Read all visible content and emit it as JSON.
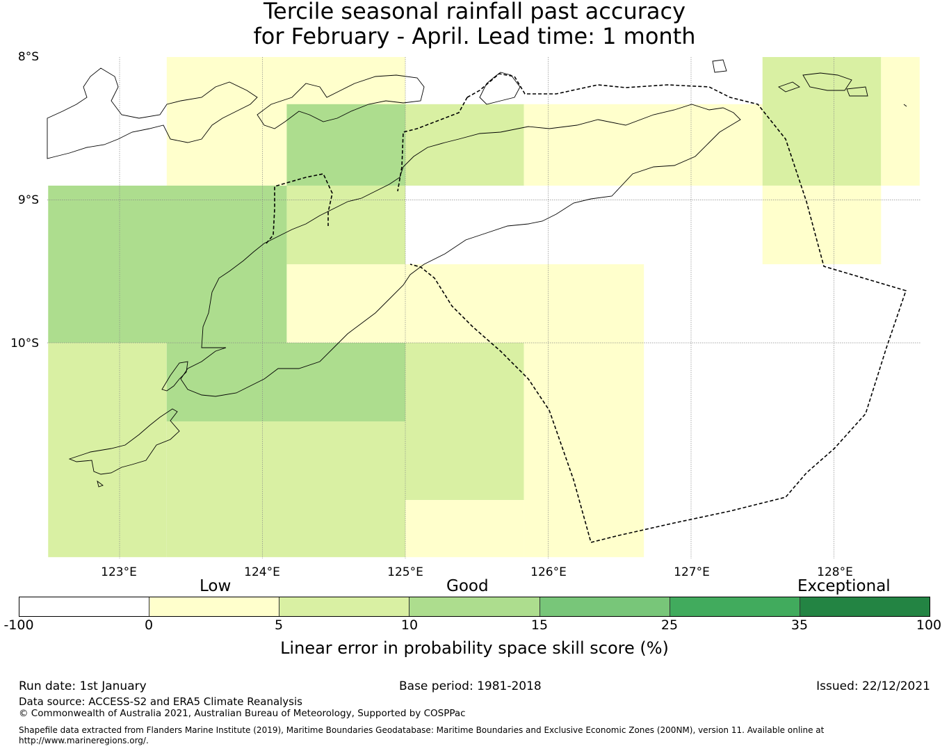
{
  "title": {
    "line1": "Tercile seasonal rainfall past accuracy",
    "line2": "for February - April. Lead time: 1 month"
  },
  "map": {
    "lat_labels": [
      "8°S",
      "9°S",
      "10°S"
    ],
    "lon_labels": [
      "123°E",
      "124°E",
      "125°E",
      "126°E",
      "127°E",
      "128°E"
    ],
    "skill_cells": [
      {
        "lon": [
          123.33,
          125.0
        ],
        "lat": [
          -7.9,
          -8.9
        ],
        "category": "0-5"
      },
      {
        "lon": [
          125.0,
          125.83
        ],
        "lat": [
          -8.33,
          -8.9
        ],
        "category": "5-10"
      },
      {
        "lon": [
          124.17,
          125.0
        ],
        "lat": [
          -8.33,
          -8.9
        ],
        "category": "10-15"
      },
      {
        "lon": [
          125.83,
          127.5
        ],
        "lat": [
          -8.33,
          -8.9
        ],
        "category": "0-5"
      },
      {
        "lon": [
          127.5,
          128.33
        ],
        "lat": [
          -7.9,
          -8.9
        ],
        "category": "5-10"
      },
      {
        "lon": [
          128.33,
          128.6
        ],
        "lat": [
          -7.9,
          -8.9
        ],
        "category": "0-5"
      },
      {
        "lon": [
          122.5,
          124.17
        ],
        "lat": [
          -8.9,
          -10.0
        ],
        "category": "10-15"
      },
      {
        "lon": [
          124.17,
          125.0
        ],
        "lat": [
          -8.9,
          -9.45
        ],
        "category": "5-10"
      },
      {
        "lon": [
          127.5,
          128.33
        ],
        "lat": [
          -8.9,
          -9.45
        ],
        "category": "0-5"
      },
      {
        "lon": [
          124.17,
          126.67
        ],
        "lat": [
          -9.45,
          -10.0
        ],
        "category": "0-5"
      },
      {
        "lon": [
          122.5,
          123.33
        ],
        "lat": [
          -10.0,
          -11.5
        ],
        "category": "5-10"
      },
      {
        "lon": [
          123.33,
          125.0
        ],
        "lat": [
          -10.0,
          -10.55
        ],
        "category": "10-15"
      },
      {
        "lon": [
          125.0,
          125.83
        ],
        "lat": [
          -10.0,
          -11.1
        ],
        "category": "5-10"
      },
      {
        "lon": [
          125.83,
          126.67
        ],
        "lat": [
          -10.0,
          -11.5
        ],
        "category": "0-5"
      },
      {
        "lon": [
          123.33,
          125.0
        ],
        "lat": [
          -10.55,
          -11.5
        ],
        "category": "5-10"
      },
      {
        "lon": [
          125.0,
          125.83
        ],
        "lat": [
          -11.1,
          -11.5
        ],
        "category": "0-5"
      }
    ]
  },
  "colorbar": {
    "category_labels": [
      "Low",
      "Good",
      "Exceptional"
    ],
    "ticks": [
      "-100",
      "0",
      "5",
      "10",
      "15",
      "25",
      "35",
      "100"
    ],
    "colors": [
      "#ffffff",
      "#ffffcc",
      "#d9f0a3",
      "#addd8e",
      "#78c679",
      "#41ab5d",
      "#238443"
    ],
    "label": "Linear error in probability space skill score (%)"
  },
  "footer": {
    "run_date": "Run date: 1st January",
    "base_period": "Base period: 1981-2018",
    "issued": "Issued: 22/12/2021",
    "data_source": "Data source: ACCESS-S2 and ERA5 Climate Reanalysis",
    "copyright": "© Commonwealth of Australia 2021, Australian Bureau of Meteorology, Supported by COSPPac",
    "shapefile_line1": "Shapefile data extracted from Flanders Marine Institute (2019), Maritime Boundaries Geodatabase: Maritime Boundaries and Exclusive Economic Zones (200NM), version 11. Available online at",
    "shapefile_line2": "http://www.marineregions.org/."
  }
}
